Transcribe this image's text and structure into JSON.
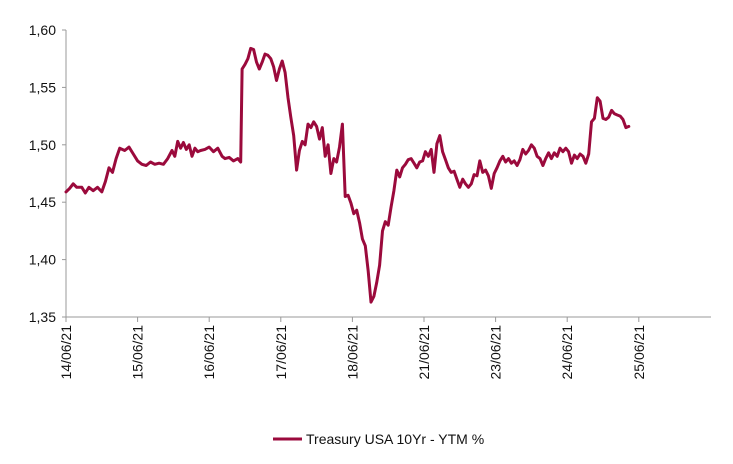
{
  "chart_data": {
    "type": "line",
    "title": "",
    "xlabel": "",
    "ylabel": "",
    "ylim": [
      1.35,
      1.6
    ],
    "y_ticks": [
      "1,35",
      "1,40",
      "1,45",
      "1,50",
      "1,55",
      "1,60"
    ],
    "y_tick_values": [
      1.35,
      1.4,
      1.45,
      1.5,
      1.55,
      1.6
    ],
    "x_ticks": [
      "14/06/21",
      "15/06/21",
      "16/06/21",
      "17/06/21",
      "18/06/21",
      "21/06/21",
      "23/06/21",
      "24/06/21",
      "25/06/21"
    ],
    "grid": false,
    "legend_position": "bottom",
    "series": [
      {
        "name": "Treasury USA 10Yr - YTM %",
        "color": "#9b0a3c",
        "points": [
          [
            0.0,
            1.459
          ],
          [
            0.05,
            1.462
          ],
          [
            0.1,
            1.466
          ],
          [
            0.15,
            1.463
          ],
          [
            0.22,
            1.463
          ],
          [
            0.27,
            1.458
          ],
          [
            0.32,
            1.463
          ],
          [
            0.38,
            1.46
          ],
          [
            0.44,
            1.463
          ],
          [
            0.5,
            1.459
          ],
          [
            0.55,
            1.468
          ],
          [
            0.6,
            1.48
          ],
          [
            0.65,
            1.476
          ],
          [
            0.7,
            1.488
          ],
          [
            0.75,
            1.497
          ],
          [
            0.82,
            1.495
          ],
          [
            0.88,
            1.498
          ],
          [
            0.94,
            1.492
          ],
          [
            1.0,
            1.486
          ],
          [
            1.06,
            1.483
          ],
          [
            1.12,
            1.482
          ],
          [
            1.18,
            1.485
          ],
          [
            1.24,
            1.483
          ],
          [
            1.3,
            1.484
          ],
          [
            1.36,
            1.483
          ],
          [
            1.42,
            1.488
          ],
          [
            1.48,
            1.495
          ],
          [
            1.52,
            1.49
          ],
          [
            1.56,
            1.503
          ],
          [
            1.6,
            1.497
          ],
          [
            1.64,
            1.502
          ],
          [
            1.68,
            1.496
          ],
          [
            1.72,
            1.5
          ],
          [
            1.76,
            1.49
          ],
          [
            1.8,
            1.497
          ],
          [
            1.84,
            1.494
          ],
          [
            1.88,
            1.495
          ],
          [
            1.94,
            1.496
          ],
          [
            2.0,
            1.498
          ],
          [
            2.06,
            1.494
          ],
          [
            2.12,
            1.497
          ],
          [
            2.18,
            1.49
          ],
          [
            2.22,
            1.488
          ],
          [
            2.28,
            1.489
          ],
          [
            2.34,
            1.486
          ],
          [
            2.4,
            1.488
          ],
          [
            2.44,
            1.485
          ],
          [
            2.46,
            1.566
          ],
          [
            2.5,
            1.57
          ],
          [
            2.54,
            1.575
          ],
          [
            2.58,
            1.584
          ],
          [
            2.62,
            1.583
          ],
          [
            2.66,
            1.572
          ],
          [
            2.7,
            1.566
          ],
          [
            2.74,
            1.572
          ],
          [
            2.78,
            1.579
          ],
          [
            2.82,
            1.578
          ],
          [
            2.86,
            1.575
          ],
          [
            2.9,
            1.568
          ],
          [
            2.94,
            1.556
          ],
          [
            2.98,
            1.566
          ],
          [
            3.02,
            1.573
          ],
          [
            3.06,
            1.563
          ],
          [
            3.1,
            1.541
          ],
          [
            3.14,
            1.524
          ],
          [
            3.18,
            1.508
          ],
          [
            3.22,
            1.478
          ],
          [
            3.26,
            1.495
          ],
          [
            3.3,
            1.503
          ],
          [
            3.34,
            1.5
          ],
          [
            3.38,
            1.518
          ],
          [
            3.42,
            1.515
          ],
          [
            3.46,
            1.52
          ],
          [
            3.5,
            1.516
          ],
          [
            3.54,
            1.505
          ],
          [
            3.58,
            1.515
          ],
          [
            3.62,
            1.49
          ],
          [
            3.66,
            1.5
          ],
          [
            3.7,
            1.475
          ],
          [
            3.74,
            1.488
          ],
          [
            3.78,
            1.485
          ],
          [
            3.82,
            1.498
          ],
          [
            3.86,
            1.518
          ],
          [
            3.9,
            1.455
          ],
          [
            3.94,
            1.456
          ],
          [
            3.98,
            1.449
          ],
          [
            4.02,
            1.44
          ],
          [
            4.06,
            1.443
          ],
          [
            4.1,
            1.432
          ],
          [
            4.14,
            1.418
          ],
          [
            4.18,
            1.412
          ],
          [
            4.22,
            1.39
          ],
          [
            4.26,
            1.363
          ],
          [
            4.3,
            1.368
          ],
          [
            4.34,
            1.38
          ],
          [
            4.38,
            1.395
          ],
          [
            4.42,
            1.425
          ],
          [
            4.46,
            1.433
          ],
          [
            4.5,
            1.43
          ],
          [
            4.54,
            1.446
          ],
          [
            4.58,
            1.46
          ],
          [
            4.62,
            1.478
          ],
          [
            4.66,
            1.472
          ],
          [
            4.7,
            1.48
          ],
          [
            4.74,
            1.483
          ],
          [
            4.78,
            1.487
          ],
          [
            4.82,
            1.488
          ],
          [
            4.86,
            1.484
          ],
          [
            4.9,
            1.48
          ],
          [
            4.94,
            1.485
          ],
          [
            4.98,
            1.486
          ],
          [
            5.02,
            1.494
          ],
          [
            5.06,
            1.49
          ],
          [
            5.1,
            1.496
          ],
          [
            5.14,
            1.476
          ],
          [
            5.18,
            1.501
          ],
          [
            5.22,
            1.508
          ],
          [
            5.26,
            1.494
          ],
          [
            5.3,
            1.487
          ],
          [
            5.34,
            1.48
          ],
          [
            5.38,
            1.476
          ],
          [
            5.42,
            1.477
          ],
          [
            5.46,
            1.47
          ],
          [
            5.5,
            1.463
          ],
          [
            5.54,
            1.47
          ],
          [
            5.58,
            1.466
          ],
          [
            5.62,
            1.463
          ],
          [
            5.66,
            1.466
          ],
          [
            5.7,
            1.474
          ],
          [
            5.74,
            1.473
          ],
          [
            5.78,
            1.486
          ],
          [
            5.82,
            1.476
          ],
          [
            5.86,
            1.478
          ],
          [
            5.9,
            1.473
          ],
          [
            5.94,
            1.462
          ],
          [
            5.98,
            1.475
          ],
          [
            6.02,
            1.48
          ],
          [
            6.06,
            1.486
          ],
          [
            6.1,
            1.49
          ],
          [
            6.14,
            1.485
          ],
          [
            6.18,
            1.488
          ],
          [
            6.22,
            1.484
          ],
          [
            6.26,
            1.486
          ],
          [
            6.3,
            1.482
          ],
          [
            6.34,
            1.487
          ],
          [
            6.38,
            1.496
          ],
          [
            6.42,
            1.492
          ],
          [
            6.46,
            1.495
          ],
          [
            6.5,
            1.5
          ],
          [
            6.54,
            1.497
          ],
          [
            6.58,
            1.49
          ],
          [
            6.62,
            1.488
          ],
          [
            6.66,
            1.482
          ],
          [
            6.7,
            1.488
          ],
          [
            6.74,
            1.493
          ],
          [
            6.78,
            1.488
          ],
          [
            6.82,
            1.493
          ],
          [
            6.86,
            1.49
          ],
          [
            6.9,
            1.497
          ],
          [
            6.94,
            1.494
          ],
          [
            6.98,
            1.497
          ],
          [
            7.02,
            1.494
          ],
          [
            7.06,
            1.484
          ],
          [
            7.1,
            1.491
          ],
          [
            7.14,
            1.488
          ],
          [
            7.18,
            1.492
          ],
          [
            7.22,
            1.49
          ],
          [
            7.26,
            1.484
          ],
          [
            7.3,
            1.492
          ],
          [
            7.34,
            1.52
          ],
          [
            7.38,
            1.523
          ],
          [
            7.42,
            1.541
          ],
          [
            7.46,
            1.538
          ],
          [
            7.5,
            1.523
          ],
          [
            7.54,
            1.522
          ],
          [
            7.58,
            1.524
          ],
          [
            7.62,
            1.53
          ],
          [
            7.66,
            1.527
          ],
          [
            7.7,
            1.526
          ],
          [
            7.74,
            1.525
          ],
          [
            7.78,
            1.522
          ],
          [
            7.82,
            1.515
          ],
          [
            7.86,
            1.516
          ]
        ]
      }
    ]
  }
}
